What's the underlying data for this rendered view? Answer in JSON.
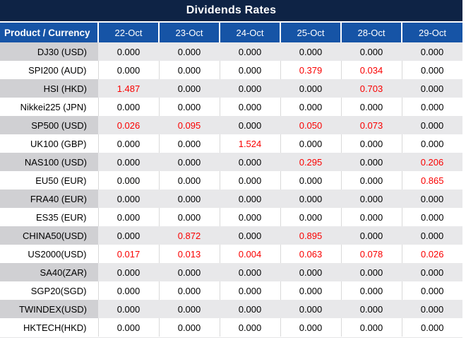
{
  "colors": {
    "title_bg": "#0E2345",
    "header_bg": "#1654A6",
    "stripe_product": "#D0D0D3",
    "stripe_data": "#E8E8EA",
    "separator": "#D9D9D9",
    "red": "#FA0000",
    "text": "#000000"
  },
  "chart_data": {
    "type": "table",
    "title": "Dividends Rates",
    "columns": [
      "Product / Currency",
      "22-Oct",
      "23-Oct",
      "24-Oct",
      "25-Oct",
      "28-Oct",
      "29-Oct"
    ],
    "rows": [
      {
        "product": "DJ30 (USD)",
        "values": [
          "0.000",
          "0.000",
          "0.000",
          "0.000",
          "0.000",
          "0.000"
        ]
      },
      {
        "product": "SPI200 (AUD)",
        "values": [
          "0.000",
          "0.000",
          "0.000",
          "0.379",
          "0.034",
          "0.000"
        ]
      },
      {
        "product": "HSI (HKD)",
        "values": [
          "1.487",
          "0.000",
          "0.000",
          "0.000",
          "0.703",
          "0.000"
        ]
      },
      {
        "product": "Nikkei225 (JPN)",
        "values": [
          "0.000",
          "0.000",
          "0.000",
          "0.000",
          "0.000",
          "0.000"
        ]
      },
      {
        "product": "SP500 (USD)",
        "values": [
          "0.026",
          "0.095",
          "0.000",
          "0.050",
          "0.073",
          "0.000"
        ]
      },
      {
        "product": "UK100 (GBP)",
        "values": [
          "0.000",
          "0.000",
          "1.524",
          "0.000",
          "0.000",
          "0.000"
        ]
      },
      {
        "product": "NAS100 (USD)",
        "values": [
          "0.000",
          "0.000",
          "0.000",
          "0.295",
          "0.000",
          "0.206"
        ]
      },
      {
        "product": "EU50 (EUR)",
        "values": [
          "0.000",
          "0.000",
          "0.000",
          "0.000",
          "0.000",
          "0.865"
        ]
      },
      {
        "product": "FRA40 (EUR)",
        "values": [
          "0.000",
          "0.000",
          "0.000",
          "0.000",
          "0.000",
          "0.000"
        ]
      },
      {
        "product": "ES35 (EUR)",
        "values": [
          "0.000",
          "0.000",
          "0.000",
          "0.000",
          "0.000",
          "0.000"
        ]
      },
      {
        "product": "CHINA50(USD)",
        "values": [
          "0.000",
          "0.872",
          "0.000",
          "0.895",
          "0.000",
          "0.000"
        ]
      },
      {
        "product": "US2000(USD)",
        "values": [
          "0.017",
          "0.013",
          "0.004",
          "0.063",
          "0.078",
          "0.026"
        ]
      },
      {
        "product": "SA40(ZAR)",
        "values": [
          "0.000",
          "0.000",
          "0.000",
          "0.000",
          "0.000",
          "0.000"
        ]
      },
      {
        "product": "SGP20(SGD)",
        "values": [
          "0.000",
          "0.000",
          "0.000",
          "0.000",
          "0.000",
          "0.000"
        ]
      },
      {
        "product": "TWINDEX(USD)",
        "values": [
          "0.000",
          "0.000",
          "0.000",
          "0.000",
          "0.000",
          "0.000"
        ]
      },
      {
        "product": "HKTECH(HKD)",
        "values": [
          "0.000",
          "0.000",
          "0.000",
          "0.000",
          "0.000",
          "0.000"
        ]
      }
    ]
  }
}
